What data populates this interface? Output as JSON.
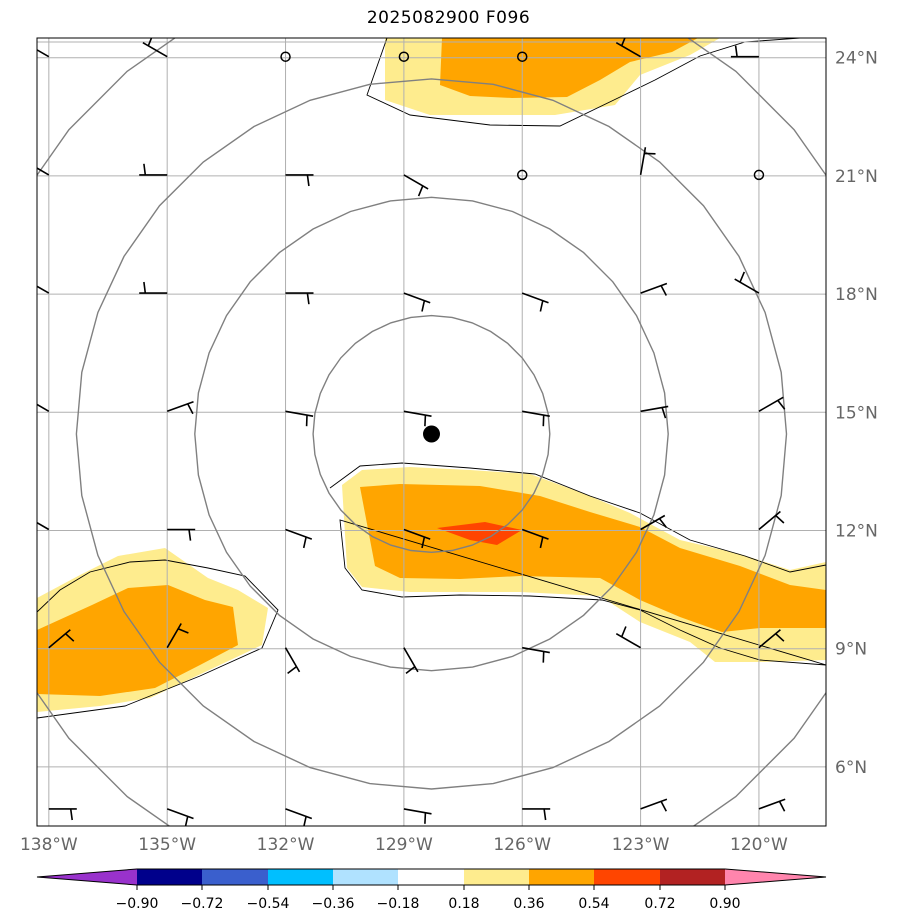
{
  "title": "2025082900 F096",
  "map": {
    "lon_range": [
      -138.3,
      -118.3
    ],
    "lat_range": [
      4.5,
      24.5
    ],
    "lon_ticks": [
      {
        "value": -138,
        "label": "138°W"
      },
      {
        "value": -135,
        "label": "135°W"
      },
      {
        "value": -132,
        "label": "132°W"
      },
      {
        "value": -129,
        "label": "129°W"
      },
      {
        "value": -126,
        "label": "126°W"
      },
      {
        "value": -123,
        "label": "123°W"
      },
      {
        "value": -120,
        "label": "120°W"
      }
    ],
    "lat_ticks": [
      {
        "value": 6,
        "label": "6°N"
      },
      {
        "value": 9,
        "label": "9°N"
      },
      {
        "value": 12,
        "label": "12°N"
      },
      {
        "value": 15,
        "label": "15°N"
      },
      {
        "value": 18,
        "label": "18°N"
      },
      {
        "value": 21,
        "label": "21°N"
      },
      {
        "value": 24,
        "label": "24°N"
      }
    ],
    "grid": true,
    "storm_center": {
      "lon": -128.3,
      "lat": 14.45
    },
    "range_ring_radii_deg": [
      3,
      6,
      9,
      12
    ],
    "field_colors": {
      "light": "#feec8e",
      "mid": "#ffa500",
      "high": "#ff4500"
    },
    "contour_color": "#808080"
  },
  "colorbar": {
    "colors": [
      "#9932cc",
      "#00008b",
      "#3a5fcd",
      "#00bfff",
      "#b0e2ff",
      "#ffffff",
      "#feec8e",
      "#ffa500",
      "#ff4500",
      "#b22222",
      "#ff85ad"
    ],
    "labels": [
      "−0.90",
      "−0.72",
      "−0.54",
      "−0.36",
      "−0.18",
      "0.18",
      "0.36",
      "0.54",
      "0.72",
      "0.90"
    ]
  }
}
